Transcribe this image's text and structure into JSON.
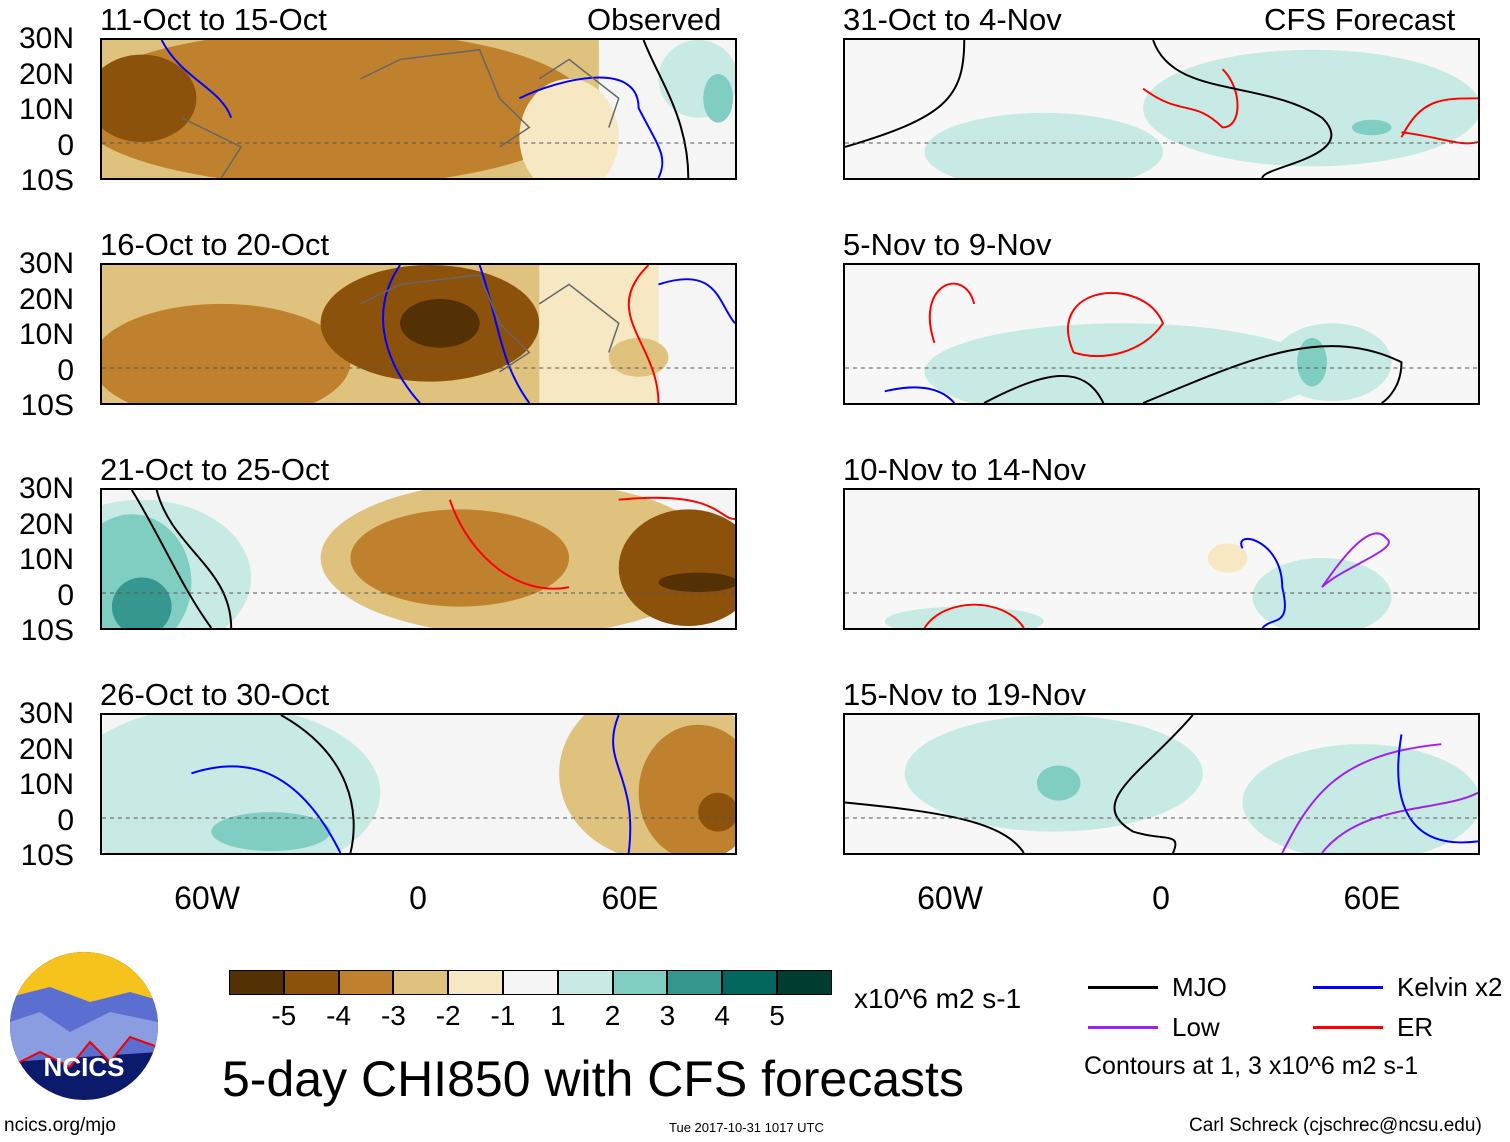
{
  "columns": {
    "left": "Observed",
    "right": "CFS Forecast"
  },
  "panels": [
    {
      "period": "11-Oct to 15-Oct"
    },
    {
      "period": "16-Oct to 20-Oct"
    },
    {
      "period": "21-Oct to 25-Oct"
    },
    {
      "period": "26-Oct to 30-Oct"
    },
    {
      "period": "31-Oct to 4-Nov"
    },
    {
      "period": "5-Nov to 9-Nov"
    },
    {
      "period": "10-Nov to 14-Nov"
    },
    {
      "period": "15-Nov to 19-Nov"
    }
  ],
  "lat_labels": [
    "30N",
    "20N",
    "10N",
    "0",
    "10S"
  ],
  "lon_labels": [
    "60W",
    "0",
    "60E"
  ],
  "colorbar": {
    "colors": [
      "#543005",
      "#8c510a",
      "#bf812d",
      "#dfc27d",
      "#f6e8c3",
      "#f5f5f5",
      "#c7eae5",
      "#80cdc1",
      "#35978f",
      "#01665e",
      "#003c30"
    ],
    "labels": [
      "-5",
      "-4",
      "-3",
      "-2",
      "-1",
      "1",
      "2",
      "3",
      "4",
      "5"
    ],
    "units": "x10^6 m2 s-1"
  },
  "legend": {
    "items": [
      {
        "label": "MJO",
        "color": "#000000"
      },
      {
        "label": "Kelvin x2",
        "color": "#0000ff"
      },
      {
        "label": "Low",
        "color": "#a020f0"
      },
      {
        "label": "ER",
        "color": "#ff0000"
      }
    ],
    "note": "Contours at 1, 3 x10^6 m2 s-1"
  },
  "title": "5-day CHI850 with CFS forecasts",
  "logo": {
    "text": "NCICS"
  },
  "footer": {
    "url": "ncics.org/mjo",
    "timestamp": "Tue 2017-10-31 1017 UTC",
    "author": "Carl Schreck (cjschrec@ncsu.edu)"
  }
}
